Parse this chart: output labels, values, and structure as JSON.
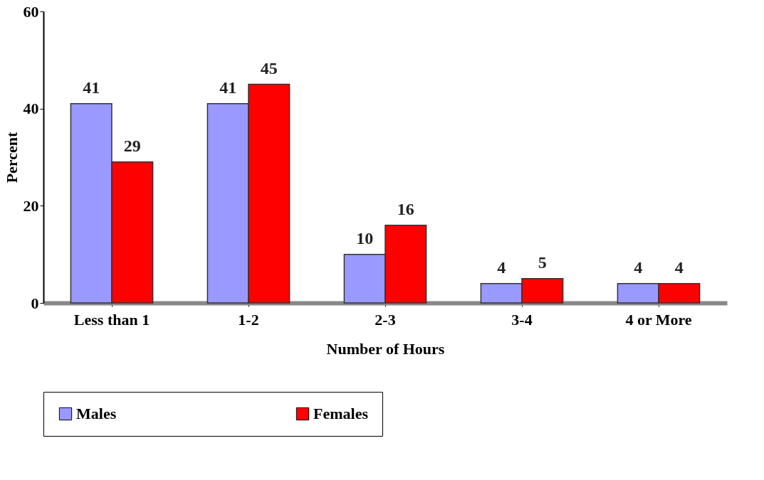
{
  "chart_data": {
    "type": "bar",
    "xlabel": "Number of Hours",
    "ylabel": "Percent",
    "categories": [
      "Less than 1",
      "1-2",
      "2-3",
      "3-4",
      "4 or More"
    ],
    "series": [
      {
        "name": "Males",
        "color": "#9999ff",
        "values": [
          41,
          41,
          10,
          4,
          4
        ]
      },
      {
        "name": "Females",
        "color": "#ff0000",
        "values": [
          29,
          45,
          16,
          5,
          4
        ]
      }
    ],
    "ylim": [
      0,
      60
    ],
    "yticks": [
      0,
      20,
      40,
      60
    ],
    "grid": false,
    "legend": "bottom",
    "data_labels": true
  }
}
